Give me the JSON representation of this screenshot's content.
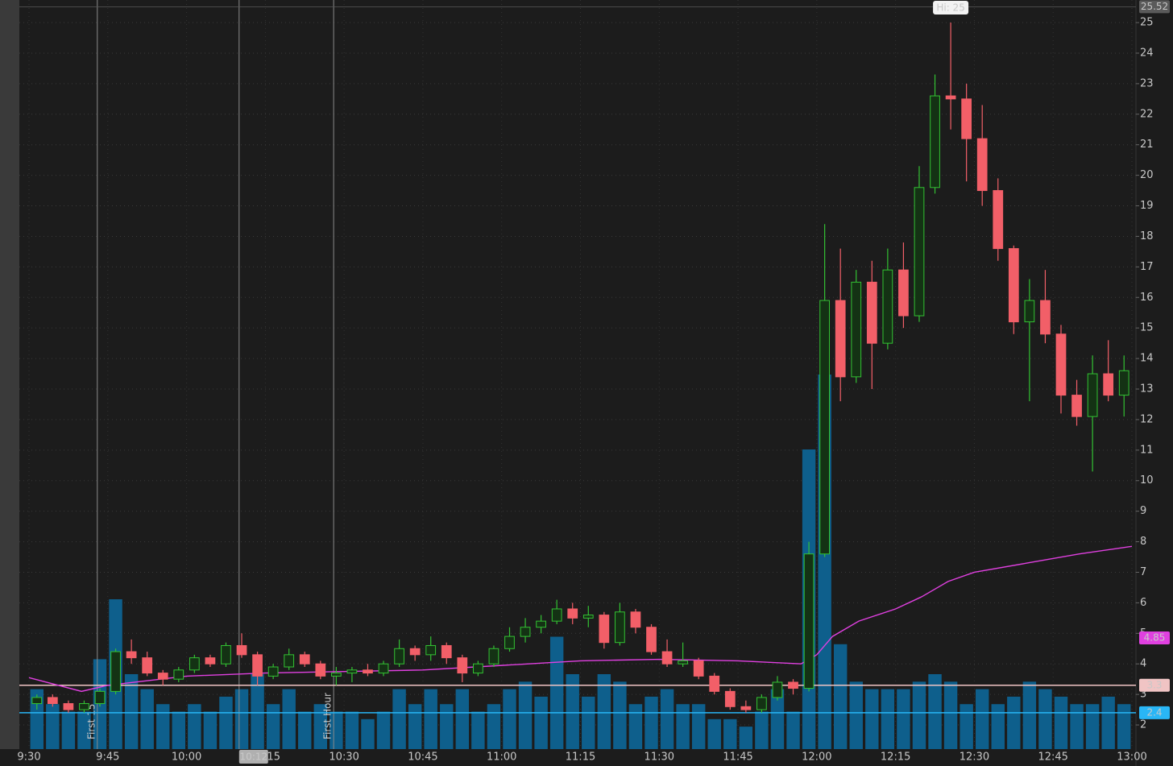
{
  "chart_data": {
    "type": "candlestick",
    "x": [
      "9:30",
      "9:33",
      "9:36",
      "9:39",
      "9:42",
      "9:45",
      "9:48",
      "9:51",
      "9:54",
      "9:57",
      "10:00",
      "10:03",
      "10:06",
      "10:09",
      "10:12",
      "10:15",
      "10:18",
      "10:21",
      "10:24",
      "10:27",
      "10:30",
      "10:33",
      "10:36",
      "10:39",
      "10:42",
      "10:45",
      "10:48",
      "10:51",
      "10:54",
      "10:57",
      "11:00",
      "11:03",
      "11:06",
      "11:09",
      "11:12",
      "11:15",
      "11:18",
      "11:21",
      "11:24",
      "11:27",
      "11:30",
      "11:33",
      "11:36",
      "11:39",
      "11:42",
      "11:45",
      "11:48",
      "11:51",
      "11:54",
      "11:57",
      "12:00",
      "12:03",
      "12:06",
      "12:09",
      "12:12",
      "12:15",
      "12:18",
      "12:21",
      "12:24",
      "12:27",
      "12:30",
      "12:33",
      "12:36",
      "12:39",
      "12:42",
      "12:45",
      "12:48",
      "12:51",
      "12:54",
      "12:57"
    ],
    "open": [
      2.7,
      2.9,
      2.7,
      2.5,
      2.7,
      3.1,
      4.4,
      4.2,
      3.7,
      3.5,
      3.8,
      4.2,
      4.0,
      4.6,
      4.3,
      3.6,
      3.9,
      4.3,
      4.0,
      3.6,
      3.7,
      3.8,
      3.7,
      4.0,
      4.5,
      4.3,
      4.6,
      4.2,
      3.7,
      4.0,
      4.5,
      4.9,
      5.2,
      5.4,
      5.8,
      5.5,
      5.6,
      4.7,
      5.7,
      5.2,
      4.4,
      4.0,
      4.1,
      3.6,
      3.1,
      2.6,
      2.5,
      2.9,
      3.4,
      3.2,
      7.6,
      15.9,
      13.4,
      16.5,
      14.5,
      16.9,
      15.4,
      19.6,
      22.6,
      22.5,
      21.2,
      19.5,
      17.6,
      15.2,
      15.9,
      14.8,
      12.8,
      12.1,
      13.5,
      12.8
    ],
    "high": [
      3.0,
      3.0,
      2.8,
      2.8,
      3.2,
      4.5,
      4.8,
      4.4,
      3.8,
      3.9,
      4.3,
      4.3,
      4.7,
      5.0,
      4.4,
      4.0,
      4.5,
      4.4,
      4.1,
      3.9,
      3.9,
      4.0,
      4.1,
      4.8,
      4.6,
      4.9,
      4.7,
      4.3,
      4.1,
      4.6,
      5.2,
      5.5,
      5.6,
      6.1,
      6.0,
      5.9,
      5.7,
      6.0,
      5.8,
      5.3,
      4.8,
      4.7,
      4.2,
      3.7,
      3.2,
      2.8,
      3.0,
      3.6,
      3.5,
      8.0,
      18.4,
      17.6,
      16.9,
      17.2,
      17.6,
      17.8,
      20.3,
      23.3,
      25,
      23.0,
      22.3,
      19.9,
      17.7,
      16.6,
      16.9,
      15.1,
      13.3,
      14.1,
      14.6,
      14.1
    ],
    "low": [
      2.5,
      2.6,
      2.4,
      2.4,
      2.6,
      3.0,
      4.0,
      3.6,
      3.3,
      3.4,
      3.7,
      3.9,
      3.9,
      4.2,
      3.3,
      3.5,
      3.8,
      3.9,
      3.5,
      3.3,
      3.4,
      3.6,
      3.6,
      3.9,
      4.1,
      4.1,
      4.0,
      3.4,
      3.6,
      3.9,
      4.4,
      4.7,
      5.0,
      5.3,
      5.3,
      5.2,
      4.5,
      4.6,
      5.0,
      4.3,
      3.9,
      3.9,
      3.5,
      3.0,
      2.5,
      2.4,
      2.4,
      2.8,
      3.0,
      3.1,
      7.5,
      12.6,
      13.2,
      13.0,
      14.3,
      15.0,
      15.2,
      19.4,
      21.5,
      19.8,
      19.0,
      17.2,
      14.8,
      12.6,
      14.5,
      12.2,
      11.8,
      10.3,
      12.6,
      12.1
    ],
    "close": [
      2.9,
      2.7,
      2.5,
      2.7,
      3.1,
      4.4,
      4.2,
      3.7,
      3.5,
      3.8,
      4.2,
      4.0,
      4.6,
      4.3,
      3.6,
      3.9,
      4.3,
      4.0,
      3.6,
      3.7,
      3.8,
      3.7,
      4.0,
      4.5,
      4.3,
      4.6,
      4.2,
      3.7,
      4.0,
      4.5,
      4.9,
      5.2,
      5.4,
      5.8,
      5.5,
      5.6,
      4.7,
      5.7,
      5.2,
      4.4,
      4.0,
      4.1,
      3.6,
      3.1,
      2.6,
      2.5,
      2.9,
      3.4,
      3.2,
      7.6,
      15.9,
      13.4,
      16.5,
      14.5,
      16.9,
      15.4,
      19.6,
      22.6,
      22.5,
      21.2,
      19.5,
      17.6,
      15.2,
      15.9,
      14.8,
      12.8,
      12.1,
      13.5,
      12.8,
      13.6
    ],
    "volume": [
      8,
      6,
      5,
      5,
      12,
      20,
      10,
      8,
      6,
      5,
      6,
      5,
      7,
      8,
      10,
      6,
      8,
      5,
      6,
      5,
      5,
      4,
      5,
      8,
      6,
      8,
      6,
      8,
      5,
      6,
      8,
      9,
      7,
      15,
      10,
      7,
      10,
      9,
      6,
      7,
      8,
      6,
      6,
      4,
      4,
      3,
      5,
      8,
      5,
      40,
      50,
      14,
      9,
      8,
      8,
      8,
      9,
      10,
      9,
      6,
      8,
      6,
      7,
      9,
      8,
      7,
      6,
      6,
      7,
      6
    ],
    "volume_lim": [
      0,
      100
    ],
    "up_color": "#33c233",
    "down_color": "#f25f68",
    "volume_color": "#0e5f8c",
    "ylim": [
      1.21,
      25.74
    ],
    "yticks": [
      2,
      3,
      4,
      5,
      6,
      7,
      8,
      9,
      10,
      11,
      12,
      13,
      14,
      15,
      16,
      17,
      18,
      19,
      20,
      21,
      22,
      23,
      24,
      25
    ],
    "xticks": [
      "9:30",
      "9:45",
      "10:00",
      "10:15",
      "10:30",
      "10:45",
      "11:00",
      "11:15",
      "11:30",
      "11:45",
      "12:00",
      "12:15",
      "12:30",
      "12:45",
      "13:00"
    ],
    "xlim": [
      "9:30",
      "13:00"
    ],
    "grid": true,
    "vwap": {
      "color": "#e040e0",
      "x": [
        "9:30",
        "9:40",
        "9:45",
        "10:00",
        "10:15",
        "10:30",
        "10:45",
        "11:00",
        "11:15",
        "11:30",
        "11:45",
        "11:57",
        "12:00",
        "12:03",
        "12:08",
        "12:15",
        "12:20",
        "12:25",
        "12:30",
        "12:40",
        "12:50",
        "13:00"
      ],
      "values": [
        3.55,
        3.1,
        3.3,
        3.6,
        3.7,
        3.75,
        3.8,
        3.95,
        4.1,
        4.15,
        4.1,
        4.0,
        4.3,
        4.9,
        5.4,
        5.8,
        6.2,
        6.7,
        7.0,
        7.3,
        7.6,
        7.85
      ]
    },
    "levels": [
      {
        "value": 3.3,
        "color": "#f0c4c4",
        "line": true
      },
      {
        "value": 2.4,
        "color": "#29b6f6",
        "line": true
      },
      {
        "value": 4.85,
        "color": "#e040e0",
        "line": false
      },
      {
        "value": 25.52,
        "color": "#5a5a5a",
        "line": true
      }
    ],
    "markers": [
      {
        "x": "9:45",
        "label": "First 15"
      },
      {
        "x": "10:12",
        "label": null
      },
      {
        "x": "10:30",
        "label": "First Hour"
      }
    ],
    "cursor": "10:12",
    "high_annotation": {
      "label": "Hi: 25",
      "x": "12:24"
    }
  }
}
